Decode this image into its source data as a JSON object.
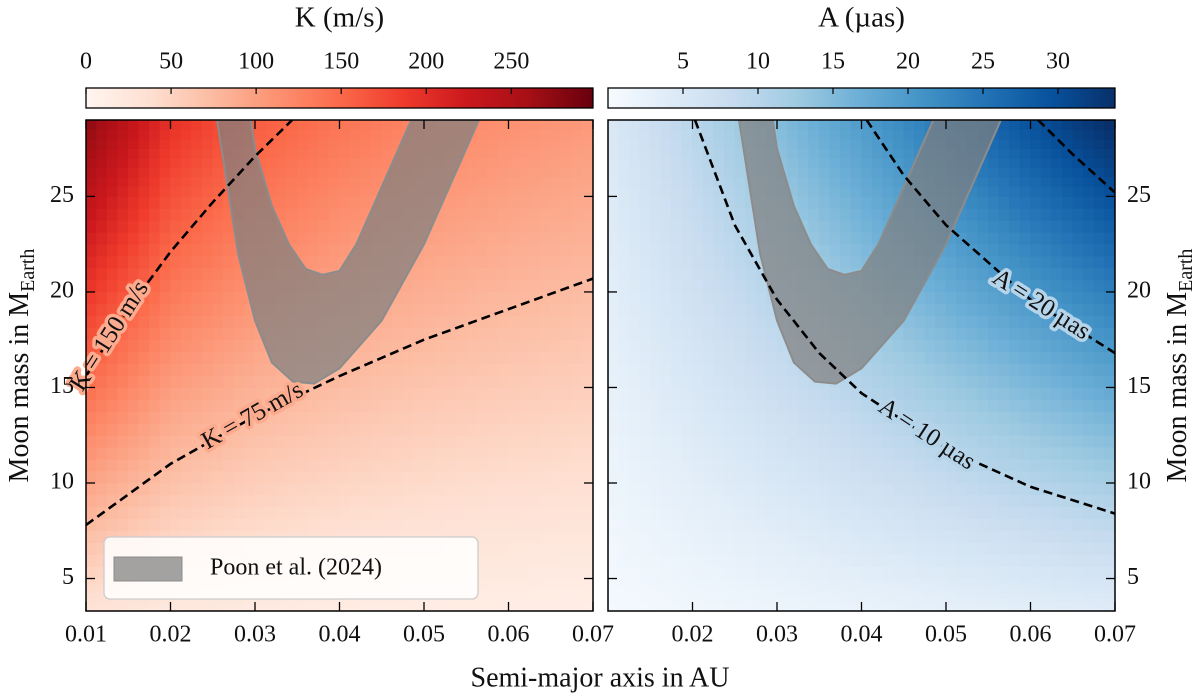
{
  "x_label": "Semi-major axis in AU",
  "chart_data": [
    {
      "type": "contour",
      "colorbar_label": "K (m/s)",
      "colorbar_lim": [
        0,
        298
      ],
      "colorbar_ticks": [
        0,
        50,
        100,
        150,
        200,
        250
      ],
      "colormap": [
        "#fff5f0",
        "#fee0d2",
        "#fcbba1",
        "#fc9272",
        "#fb6a4a",
        "#ef3b2c",
        "#cb181d",
        "#a50f15",
        "#67000d"
      ],
      "x": [
        0.01,
        0.02,
        0.03,
        0.04,
        0.05,
        0.06,
        0.07
      ],
      "y": [
        3,
        5,
        10,
        15,
        20,
        25,
        29
      ],
      "z": [
        [
          28.8,
          20.4,
          16.6,
          14.4,
          12.9,
          11.8,
          10.9
        ],
        [
          48,
          33.9,
          27.7,
          24,
          21.5,
          19.6,
          18.1
        ],
        [
          96,
          67.9,
          55.4,
          48,
          42.9,
          39.2,
          36.3
        ],
        [
          144,
          101.8,
          83.1,
          72,
          64.4,
          58.8,
          54.4
        ],
        [
          192,
          135.8,
          110.9,
          96,
          85.9,
          78.4,
          72.6
        ],
        [
          240,
          169.7,
          138.6,
          120,
          107.3,
          98,
          90.7
        ],
        [
          278.4,
          196.9,
          160.7,
          139.2,
          124.5,
          113.7,
          105.2
        ]
      ],
      "contours": [
        {
          "label": "K = 150 m/s",
          "x": [
            0.01,
            0.015,
            0.02,
            0.025,
            0.03,
            0.0344
          ],
          "y": [
            15.6,
            19.1,
            22.1,
            24.7,
            27.1,
            29
          ]
        },
        {
          "label": "K = 75 m/s",
          "x": [
            0.01,
            0.02,
            0.03,
            0.04,
            0.05,
            0.06,
            0.07
          ],
          "y": [
            7.8,
            11.0,
            13.5,
            15.6,
            17.5,
            19.1,
            20.7
          ]
        }
      ],
      "region": {
        "name": "Poon et al. (2024)",
        "color": "#808080",
        "alpha": 0.72,
        "edge": "#8c8c8c",
        "x": [
          0.0255,
          0.028,
          0.03,
          0.032,
          0.0345,
          0.037,
          0.04,
          0.045,
          0.05,
          0.054,
          0.0565,
          0.0485,
          0.045,
          0.042,
          0.04,
          0.038,
          0.036,
          0.034,
          0.032,
          0.03,
          0.0295
        ],
        "y": [
          29,
          22,
          18.5,
          16.3,
          15.3,
          15.2,
          16.0,
          18.5,
          22.5,
          26.5,
          29,
          29,
          25.5,
          22.5,
          21.1,
          20.9,
          21.2,
          22.5,
          24.5,
          27.5,
          29
        ]
      },
      "legend": "lower left",
      "xlim": [
        0.01,
        0.07
      ],
      "xticks": [
        0.01,
        0.02,
        0.03,
        0.04,
        0.05,
        0.06,
        0.07
      ],
      "ylim": [
        3.3,
        29
      ],
      "yticks": [
        5,
        10,
        15,
        20,
        25
      ],
      "y_label": "Moon mass in M",
      "y_label_sub": "Earth",
      "y_axis_side": "left"
    },
    {
      "type": "contour",
      "colorbar_label": "A (µas)",
      "colorbar_lim": [
        0,
        33.8
      ],
      "colorbar_ticks": [
        5,
        10,
        15,
        20,
        25,
        30
      ],
      "colormap": [
        "#f7fbff",
        "#deebf7",
        "#c6dbef",
        "#9ecae1",
        "#6baed6",
        "#4292c6",
        "#2171b5",
        "#08519c",
        "#08306b"
      ],
      "x": [
        0.01,
        0.02,
        0.03,
        0.04,
        0.05,
        0.06,
        0.07
      ],
      "y": [
        3,
        5,
        10,
        15,
        20,
        25,
        29
      ],
      "z": [
        [
          0.51,
          1.02,
          1.53,
          2.04,
          2.55,
          3.06,
          3.57
        ],
        [
          0.85,
          1.7,
          2.55,
          3.4,
          4.25,
          5.1,
          5.95
        ],
        [
          1.7,
          3.4,
          5.1,
          6.8,
          8.5,
          10.2,
          11.9
        ],
        [
          2.55,
          5.1,
          7.65,
          10.2,
          12.75,
          15.3,
          17.85
        ],
        [
          3.4,
          6.8,
          10.2,
          13.6,
          17,
          20.4,
          23.8
        ],
        [
          4.25,
          8.5,
          12.75,
          17,
          21.25,
          25.5,
          29.75
        ],
        [
          4.93,
          9.86,
          14.79,
          19.72,
          24.65,
          29.58,
          34.51
        ]
      ],
      "contours": [
        {
          "label": "A = 10 µas",
          "x": [
            0.0203,
            0.025,
            0.03,
            0.035,
            0.04,
            0.05,
            0.06,
            0.07
          ],
          "y": [
            29,
            23.5,
            19.6,
            16.8,
            14.7,
            11.8,
            9.8,
            8.4
          ]
        },
        {
          "label": "A = 20 µas",
          "x": [
            0.0406,
            0.045,
            0.05,
            0.06,
            0.07
          ],
          "y": [
            29,
            26.1,
            23.5,
            19.6,
            16.8
          ]
        },
        {
          "x": [
            0.0609,
            0.065,
            0.07
          ],
          "y": [
            29,
            27.2,
            25.2
          ]
        }
      ],
      "region": {
        "color": "#808080",
        "alpha": 0.72,
        "edge": "#8c8c8c",
        "x": [
          0.0255,
          0.028,
          0.03,
          0.032,
          0.0345,
          0.037,
          0.04,
          0.045,
          0.05,
          0.054,
          0.0565,
          0.0485,
          0.045,
          0.042,
          0.04,
          0.038,
          0.036,
          0.034,
          0.032,
          0.03,
          0.0295
        ],
        "y": [
          29,
          22,
          18.5,
          16.3,
          15.3,
          15.2,
          16.0,
          18.5,
          22.5,
          26.5,
          29,
          29,
          25.5,
          22.5,
          21.1,
          20.9,
          21.2,
          22.5,
          24.5,
          27.5,
          29
        ]
      },
      "xlim": [
        0.01,
        0.07
      ],
      "xticks": [
        0.02,
        0.03,
        0.04,
        0.05,
        0.06,
        0.07
      ],
      "ylim": [
        3.3,
        29
      ],
      "yticks": [
        5,
        10,
        15,
        20,
        25
      ],
      "y_label": "Moon mass in M",
      "y_label_sub": "Earth",
      "y_axis_side": "right"
    }
  ]
}
